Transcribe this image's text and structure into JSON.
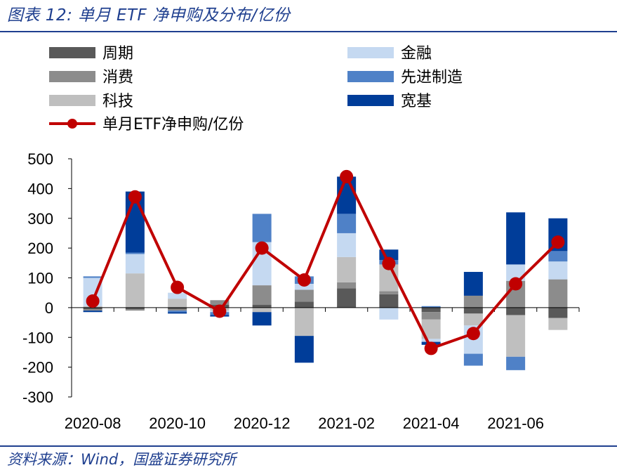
{
  "header": {
    "title": "图表 12:  单月 ETF 净申购及分布/亿份"
  },
  "footer": {
    "source": "资料来源：Wind，国盛证券研究所"
  },
  "chart_data": {
    "type": "bar",
    "stacked": true,
    "categories": [
      "2020-08",
      "2020-09",
      "2020-10",
      "2020-11",
      "2020-12",
      "2021-01",
      "2021-02",
      "2021-03",
      "2021-04",
      "2021-05",
      "2021-06",
      "2021-07"
    ],
    "x_tick_labels": [
      "2020-08",
      "2020-10",
      "2020-12",
      "2021-02",
      "2021-04",
      "2021-06"
    ],
    "ylim": [
      -300,
      500
    ],
    "yticks": [
      -300,
      -200,
      -100,
      0,
      100,
      200,
      300,
      400,
      500
    ],
    "legend_placement": "top",
    "series": [
      {
        "name": "周期",
        "color": "#595959",
        "values": [
          -5,
          -5,
          -5,
          10,
          10,
          20,
          65,
          45,
          -15,
          -20,
          -25,
          -35
        ]
      },
      {
        "name": "消费",
        "color": "#8c8c8c",
        "values": [
          -5,
          -5,
          -5,
          15,
          65,
          40,
          20,
          10,
          -25,
          40,
          90,
          95
        ]
      },
      {
        "name": "科技",
        "color": "#bfbfbf",
        "values": [
          5,
          115,
          30,
          -10,
          -15,
          -95,
          85,
          90,
          -65,
          -40,
          -140,
          -40
        ]
      },
      {
        "name": "金融",
        "color": "#c5d9f1",
        "values": [
          95,
          65,
          20,
          -5,
          145,
          20,
          80,
          -40,
          -10,
          -95,
          55,
          60
        ]
      },
      {
        "name": "先进制造",
        "color": "#4f81c7",
        "values": [
          5,
          5,
          -5,
          -10,
          95,
          25,
          65,
          15,
          5,
          -40,
          -45,
          35
        ]
      },
      {
        "name": "宽基",
        "color": "#003d99",
        "values": [
          -5,
          205,
          -5,
          -5,
          -45,
          -90,
          125,
          35,
          -10,
          80,
          175,
          110
        ]
      }
    ],
    "line": {
      "name": "单月ETF净申购/亿份",
      "color": "#c00000",
      "values": [
        22,
        372,
        68,
        -12,
        200,
        93,
        440,
        148,
        -137,
        -87,
        80,
        220
      ]
    }
  }
}
